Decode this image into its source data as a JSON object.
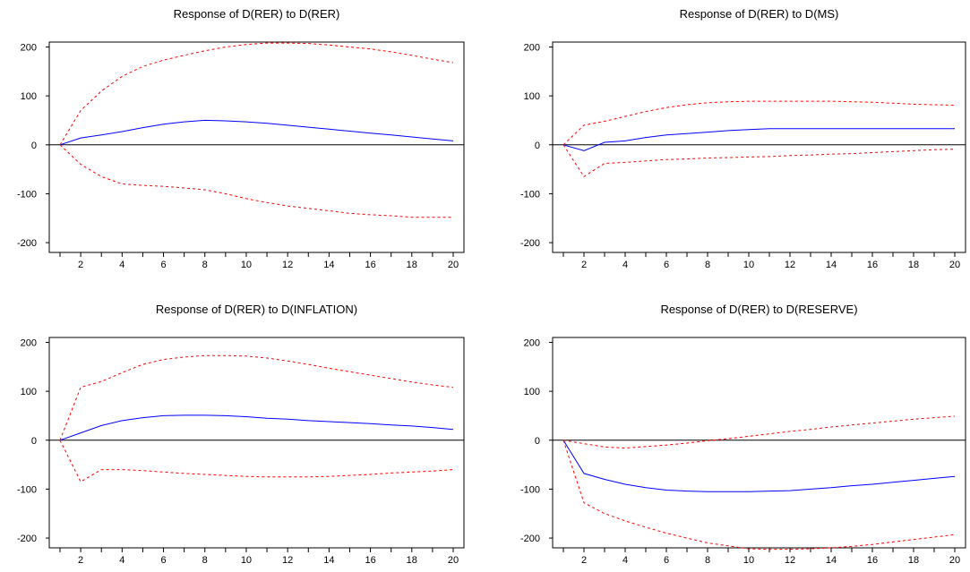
{
  "colors": {
    "response": "#0000ff",
    "bands": "#ff0000",
    "zero_line": "#000000",
    "frame": "#000000"
  },
  "chart_data": [
    {
      "type": "line",
      "title": "Response of D(RER) to D(RER)",
      "xlim": [
        1,
        20
      ],
      "ylim": [
        -220,
        210
      ],
      "x_ticks": [
        2,
        4,
        6,
        8,
        10,
        12,
        14,
        16,
        18,
        20
      ],
      "y_ticks": [
        -200,
        -100,
        0,
        100,
        200
      ],
      "x": [
        1,
        2,
        3,
        4,
        5,
        6,
        7,
        8,
        9,
        10,
        11,
        12,
        13,
        14,
        15,
        16,
        17,
        18,
        19,
        20
      ],
      "series": [
        {
          "style": "solid",
          "color": "#0000ff",
          "values": [
            0,
            14,
            20,
            27,
            35,
            42,
            47,
            50,
            49,
            47,
            44,
            40,
            36,
            32,
            28,
            24,
            20,
            16,
            12,
            8
          ]
        },
        {
          "style": "dashed",
          "color": "#ff0000",
          "values": [
            0,
            70,
            110,
            140,
            160,
            173,
            183,
            192,
            200,
            205,
            208,
            208,
            207,
            204,
            200,
            196,
            190,
            183,
            175,
            168
          ]
        },
        {
          "style": "dashed",
          "color": "#ff0000",
          "values": [
            0,
            -40,
            -65,
            -80,
            -83,
            -85,
            -88,
            -92,
            -100,
            -110,
            -118,
            -125,
            -130,
            -135,
            -140,
            -143,
            -145,
            -148,
            -148,
            -148
          ]
        }
      ]
    },
    {
      "type": "line",
      "title": "Response of D(RER) to D(MS)",
      "xlim": [
        1,
        20
      ],
      "ylim": [
        -220,
        210
      ],
      "x_ticks": [
        2,
        4,
        6,
        8,
        10,
        12,
        14,
        16,
        18,
        20
      ],
      "y_ticks": [
        -200,
        -100,
        0,
        100,
        200
      ],
      "x": [
        1,
        2,
        3,
        4,
        5,
        6,
        7,
        8,
        9,
        10,
        11,
        12,
        13,
        14,
        15,
        16,
        17,
        18,
        19,
        20
      ],
      "series": [
        {
          "style": "solid",
          "color": "#0000ff",
          "values": [
            0,
            -12,
            5,
            8,
            15,
            20,
            23,
            26,
            29,
            31,
            33,
            33,
            33,
            33,
            33,
            33,
            33,
            33,
            33,
            33
          ]
        },
        {
          "style": "dashed",
          "color": "#ff0000",
          "values": [
            0,
            40,
            48,
            58,
            68,
            76,
            82,
            86,
            88,
            89,
            89,
            89,
            89,
            89,
            88,
            87,
            85,
            83,
            82,
            81
          ]
        },
        {
          "style": "dashed",
          "color": "#ff0000",
          "values": [
            0,
            -65,
            -38,
            -36,
            -33,
            -30,
            -29,
            -27,
            -26,
            -25,
            -24,
            -22,
            -21,
            -19,
            -18,
            -16,
            -14,
            -12,
            -10,
            -9
          ]
        }
      ]
    },
    {
      "type": "line",
      "title": "Response of D(RER) to D(INFLATION)",
      "xlim": [
        1,
        20
      ],
      "ylim": [
        -220,
        210
      ],
      "x_ticks": [
        2,
        4,
        6,
        8,
        10,
        12,
        14,
        16,
        18,
        20
      ],
      "y_ticks": [
        -200,
        -100,
        0,
        100,
        200
      ],
      "x": [
        1,
        2,
        3,
        4,
        5,
        6,
        7,
        8,
        9,
        10,
        11,
        12,
        13,
        14,
        15,
        16,
        17,
        18,
        19,
        20
      ],
      "series": [
        {
          "style": "solid",
          "color": "#0000ff",
          "values": [
            0,
            15,
            30,
            40,
            46,
            50,
            51,
            51,
            50,
            48,
            45,
            43,
            40,
            38,
            36,
            34,
            31,
            29,
            26,
            22
          ]
        },
        {
          "style": "dashed",
          "color": "#ff0000",
          "values": [
            0,
            108,
            120,
            138,
            155,
            165,
            170,
            173,
            173,
            172,
            168,
            162,
            155,
            147,
            140,
            133,
            126,
            119,
            113,
            108
          ]
        },
        {
          "style": "dashed",
          "color": "#ff0000",
          "values": [
            0,
            -85,
            -60,
            -60,
            -62,
            -65,
            -68,
            -70,
            -72,
            -74,
            -75,
            -75,
            -75,
            -74,
            -72,
            -70,
            -67,
            -65,
            -63,
            -60
          ]
        }
      ]
    },
    {
      "type": "line",
      "title": "Response of D(RER) to D(RESERVE)",
      "xlim": [
        1,
        20
      ],
      "ylim": [
        -220,
        210
      ],
      "x_ticks": [
        2,
        4,
        6,
        8,
        10,
        12,
        14,
        16,
        18,
        20
      ],
      "y_ticks": [
        -200,
        -100,
        0,
        100,
        200
      ],
      "x": [
        1,
        2,
        3,
        4,
        5,
        6,
        7,
        8,
        9,
        10,
        11,
        12,
        13,
        14,
        15,
        16,
        17,
        18,
        19,
        20
      ],
      "series": [
        {
          "style": "solid",
          "color": "#0000ff",
          "values": [
            0,
            -68,
            -80,
            -90,
            -97,
            -102,
            -104,
            -105,
            -105,
            -105,
            -104,
            -103,
            -100,
            -97,
            -93,
            -90,
            -86,
            -82,
            -78,
            -74
          ]
        },
        {
          "style": "dashed",
          "color": "#ff0000",
          "values": [
            0,
            -7,
            -14,
            -16,
            -13,
            -10,
            -6,
            -1,
            3,
            8,
            13,
            18,
            22,
            27,
            31,
            35,
            39,
            43,
            46,
            49
          ]
        },
        {
          "style": "dashed",
          "color": "#ff0000",
          "values": [
            0,
            -128,
            -150,
            -165,
            -178,
            -190,
            -200,
            -210,
            -216,
            -222,
            -223,
            -223,
            -222,
            -220,
            -217,
            -213,
            -208,
            -203,
            -198,
            -193
          ]
        }
      ]
    }
  ]
}
